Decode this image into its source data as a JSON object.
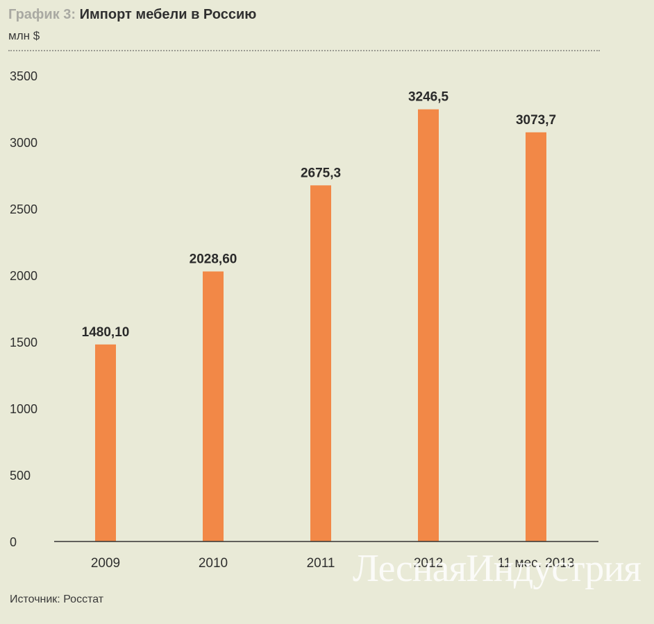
{
  "header": {
    "prefix": "График 3:",
    "title": "Импорт мебели в Россию",
    "unit": "млн $"
  },
  "source": "Источник: Росстат",
  "watermark": "ЛеснаяИндустрия",
  "colors": {
    "bar": "#f28847",
    "axis": "#333333",
    "background": "#e9ead7"
  },
  "chart_data": {
    "type": "bar",
    "title": "Импорт мебели в Россию",
    "ylabel": "млн $",
    "categories": [
      "2009",
      "2010",
      "2011",
      "2012",
      "11 мес. 2013"
    ],
    "values": [
      1480.1,
      2028.6,
      2675.3,
      3246.5,
      3073.7
    ],
    "value_labels": [
      "1480,10",
      "2028,60",
      "2675,3",
      "3246,5",
      "3073,7"
    ],
    "ylim": [
      0,
      3500
    ],
    "yticks": [
      0,
      500,
      1000,
      1500,
      2000,
      2500,
      3000,
      3500
    ],
    "grid": false,
    "legend": "none"
  }
}
